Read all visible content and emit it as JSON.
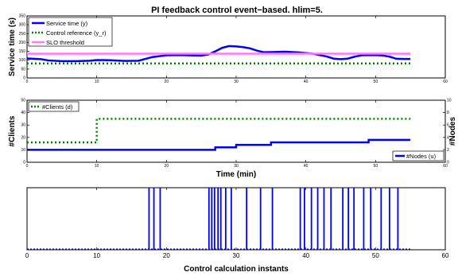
{
  "title": "PI feedback control event−based. hlim=5.",
  "chart_data": [
    {
      "type": "line",
      "ylabel": "Service time (s)",
      "xlim": [
        0,
        60
      ],
      "ylim": [
        0,
        350
      ],
      "x_ticks": [
        0,
        10,
        20,
        30,
        40,
        50,
        60
      ],
      "y_ticks": [
        0,
        50,
        100,
        150,
        200,
        250,
        300,
        350
      ],
      "legend_position": "top-left",
      "grid": false,
      "series": [
        {
          "name": "Service time (y)",
          "color": "#0000ff",
          "style": "solid",
          "points": [
            [
              0,
              110
            ],
            [
              2,
              106
            ],
            [
              3,
              99
            ],
            [
              5,
              95
            ],
            [
              7,
              95
            ],
            [
              9,
              97
            ],
            [
              10,
              101
            ],
            [
              12,
              100
            ],
            [
              14,
              96
            ],
            [
              16,
              97
            ],
            [
              18,
              118
            ],
            [
              20,
              128
            ],
            [
              22,
              129
            ],
            [
              24,
              127
            ],
            [
              25,
              126
            ],
            [
              26,
              132
            ],
            [
              27,
              150
            ],
            [
              28,
              170
            ],
            [
              29,
              180
            ],
            [
              30,
              178
            ],
            [
              31,
              174
            ],
            [
              32,
              167
            ],
            [
              33,
              154
            ],
            [
              34,
              145
            ],
            [
              35,
              146
            ],
            [
              37,
              148
            ],
            [
              39,
              144
            ],
            [
              41,
              137
            ],
            [
              43,
              121
            ],
            [
              44,
              109
            ],
            [
              45,
              106
            ],
            [
              46,
              109
            ],
            [
              47,
              120
            ],
            [
              48,
              128
            ],
            [
              50,
              129
            ],
            [
              51,
              127
            ],
            [
              52,
              120
            ],
            [
              53,
              108
            ],
            [
              54,
              107
            ],
            [
              55,
              107
            ]
          ]
        },
        {
          "name": "Control reference (y_r)",
          "color": "#008000",
          "style": "dotted",
          "points": [
            [
              0,
              82
            ],
            [
              55,
              82
            ]
          ]
        },
        {
          "name": "SLO threshold",
          "color": "#ff77ff",
          "style": "solid",
          "points": [
            [
              0,
              137
            ],
            [
              55,
              137
            ]
          ]
        }
      ]
    },
    {
      "type": "line",
      "xlabel": "Time (min)",
      "ylabel": "#Clients",
      "ylabel_right": "#Nodes",
      "xlim": [
        0,
        60
      ],
      "ylim": [
        0,
        50
      ],
      "y2lim": [
        0,
        10
      ],
      "x_ticks": [
        0,
        10,
        20,
        30,
        40,
        50,
        60
      ],
      "y_ticks": [
        0,
        10,
        20,
        30,
        40,
        50
      ],
      "y2_ticks": [
        0,
        2,
        4,
        6,
        8,
        10
      ],
      "series": [
        {
          "name": "#Clients (d)",
          "color": "#008000",
          "style": "dotted",
          "axis": "left",
          "legend_position": "top-left",
          "points": [
            [
              0,
              16
            ],
            [
              10,
              16
            ],
            [
              10,
              35
            ],
            [
              55,
              35
            ]
          ]
        },
        {
          "name": "#Nodes (u)",
          "color": "#0000ff",
          "style": "solid",
          "axis": "right",
          "legend_position": "bottom-right",
          "points": [
            [
              0,
              2
            ],
            [
              27,
              2
            ],
            [
              27,
              2.4
            ],
            [
              30,
              2.4
            ],
            [
              30,
              2.8
            ],
            [
              35,
              2.8
            ],
            [
              35,
              3.2
            ],
            [
              49,
              3.2
            ],
            [
              49,
              3.6
            ],
            [
              55,
              3.6
            ]
          ]
        }
      ]
    },
    {
      "type": "bar",
      "xlabel": "Control calculation instants",
      "xlim": [
        0,
        60
      ],
      "ylim": [
        0,
        1
      ],
      "x_ticks": [
        0,
        10,
        20,
        30,
        40,
        50,
        60
      ],
      "color": "#0000ff",
      "events": [
        17.5,
        18.2,
        19.1,
        26.1,
        26.5,
        26.9,
        27.4,
        27.8,
        28.5,
        29.3,
        31.5,
        33.5,
        35.2,
        39.2,
        39.8,
        40.8,
        41.7,
        42.6,
        43.6,
        45.3,
        46.1,
        46.9,
        48.3,
        49.3,
        50.8,
        52.0,
        53.2
      ]
    }
  ]
}
